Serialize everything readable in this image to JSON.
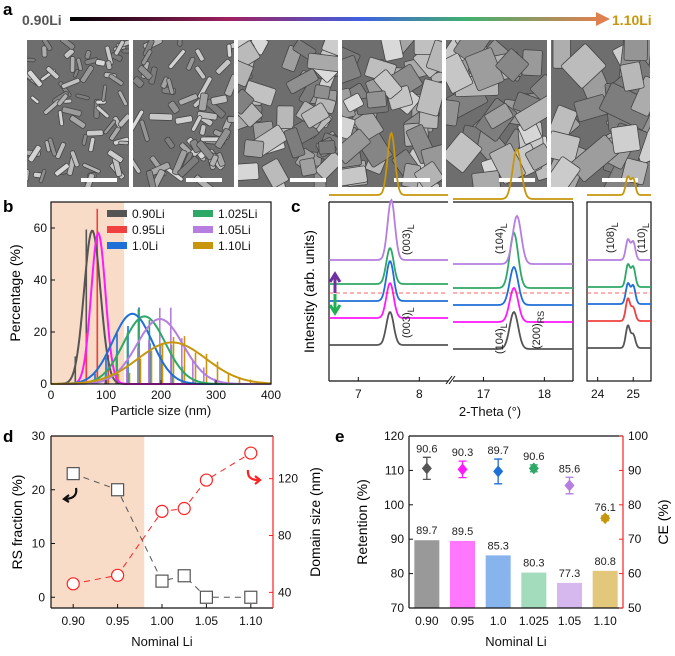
{
  "panel_labels": {
    "a": "a",
    "b": "b",
    "c": "c",
    "d": "d",
    "e": "e"
  },
  "colors": {
    "shade": "#f9dcc8",
    "gray": "#555555",
    "magenta": "#ff19ff",
    "red": "#f04040",
    "blue": "#1f6fd8",
    "green": "#2ea866",
    "purple": "#b57ee0",
    "gold": "#c8960c",
    "axis_red": "#ff2020"
  },
  "panel_a": {
    "left_label": "0.90Li",
    "right_label": "1.10Li",
    "image_count": 6
  },
  "chart_data": [
    {
      "id": "b",
      "type": "bar",
      "xlabel": "Particle size (nm)",
      "ylabel": "Percentage (%)",
      "xlim": [
        0,
        400
      ],
      "ylim": [
        0,
        70
      ],
      "xticks": [
        0,
        100,
        200,
        300,
        400
      ],
      "yticks": [
        0,
        20,
        40,
        60
      ],
      "shaded_region_x": [
        0,
        133
      ],
      "legend_placement": "top-right",
      "series": [
        {
          "name": "0.90Li",
          "color": "#555555",
          "fit_mean": 75,
          "fit_peak": 59,
          "fit_sigma": 15
        },
        {
          "name": "0.95Li",
          "color": "#f04040",
          "line_color": "#ff19ff",
          "fit_mean": 86,
          "fit_peak": 58,
          "fit_sigma": 13
        },
        {
          "name": "1.0Li",
          "color": "#1f6fd8",
          "fit_mean": 148,
          "fit_peak": 27,
          "fit_sigma": 36
        },
        {
          "name": "1.025Li",
          "color": "#2ea866",
          "fit_mean": 170,
          "fit_peak": 26,
          "fit_sigma": 38
        },
        {
          "name": "1.05Li",
          "color": "#b57ee0",
          "fit_mean": 198,
          "fit_peak": 25,
          "fit_sigma": 42
        },
        {
          "name": "1.10Li",
          "color": "#c8960c",
          "fit_mean": 220,
          "fit_peak": 16,
          "fit_sigma": 62
        }
      ]
    },
    {
      "id": "c",
      "type": "line",
      "xlabel": "2-Theta (°)",
      "ylabel": "Intensity (arb. units)",
      "ranges": [
        [
          6.52,
          8.47
        ],
        [
          16.5,
          18.47
        ],
        [
          23.7,
          25.5
        ]
      ],
      "xticks": [
        [
          7,
          8
        ],
        [
          17,
          18
        ],
        [
          24,
          25
        ]
      ],
      "series": [
        {
          "name": "0.90Li",
          "color": "#555555",
          "color_c3": "#555555"
        },
        {
          "name": "0.95Li",
          "color": "#ff19ff",
          "color_c3": "#f04040"
        },
        {
          "name": "1.0Li",
          "color": "#1f6fd8",
          "color_c3": "#1f6fd8"
        },
        {
          "name": "1.025Li",
          "color": "#2ea866",
          "color_c3": "#2ea866"
        },
        {
          "name": "1.05Li",
          "color": "#b57ee0",
          "color_c3": "#b57ee0"
        },
        {
          "name": "1.10Li",
          "color": "#c8960c",
          "color_c3": "#c8960c"
        }
      ],
      "peaks": {
        "003": 7.52,
        "104": 17.5,
        "108": 24.85,
        "110": 25.0
      },
      "annotations": [
        {
          "text": "(003)",
          "sub": "L"
        },
        {
          "text": "(104)",
          "sub": "L"
        },
        {
          "text": "(108)",
          "sub": "L"
        },
        {
          "text": "(110)",
          "sub": "L"
        },
        {
          "text": "(003)",
          "sub": "L"
        },
        {
          "text": "(104)",
          "sub": "L"
        },
        {
          "text": "(200)",
          "sub": "RS"
        }
      ]
    },
    {
      "id": "d",
      "type": "scatter",
      "xlabel": "Nominal Li",
      "ylabel": "RS fraction (%)",
      "y2label": "Domain size (nm)",
      "xlim": [
        0.875,
        1.125
      ],
      "ylim": [
        -2,
        30
      ],
      "y2lim": [
        29,
        150
      ],
      "xticks": [
        "0.90",
        "0.95",
        "1.00",
        "1.05",
        "1.10"
      ],
      "yticks": [
        0,
        10,
        20,
        30
      ],
      "y2ticks": [
        40,
        80,
        120
      ],
      "shaded_region_x": [
        0.875,
        0.98
      ],
      "x": [
        0.9,
        0.95,
        1.0,
        1.025,
        1.05,
        1.1
      ],
      "series": [
        {
          "name": "RS fraction",
          "axis": "left",
          "color": "#555555",
          "marker": "square",
          "values": [
            23,
            20,
            3,
            4,
            0,
            0
          ]
        },
        {
          "name": "Domain size",
          "axis": "right",
          "color": "#ff2020",
          "marker": "circle",
          "values": [
            46,
            52,
            97,
            99,
            119,
            138
          ]
        }
      ]
    },
    {
      "id": "e",
      "type": "bar",
      "xlabel": "Nominal Li",
      "ylabel": "Retention (%)",
      "y2label": "CE (%)",
      "categories": [
        "0.90",
        "0.95",
        "1.0",
        "1.025",
        "1.05",
        "1.10"
      ],
      "ylim": [
        70,
        120
      ],
      "y2lim": [
        50,
        100
      ],
      "yticks": [
        70,
        80,
        90,
        100,
        110,
        120
      ],
      "y2ticks": [
        50,
        60,
        70,
        80,
        90,
        100
      ],
      "bar_colors": [
        "#999999",
        "#ff77ff",
        "#88b4ee",
        "#a3dcbc",
        "#d6b8ef",
        "#e3c77a"
      ],
      "marker_colors": [
        "#555555",
        "#ff19ff",
        "#1f6fd8",
        "#2ea866",
        "#b57ee0",
        "#c8960c"
      ],
      "retention": [
        89.7,
        89.5,
        85.3,
        80.3,
        77.3,
        80.8
      ],
      "retention_labels": [
        "89.7",
        "89.5",
        "85.3",
        "80.3",
        "77.3",
        "80.8"
      ],
      "ce": [
        90.6,
        90.3,
        89.7,
        90.6,
        85.6,
        76.1
      ],
      "ce_labels": [
        "90.6",
        "90.3",
        "89.7",
        "90.6",
        "85.6",
        "76.1"
      ],
      "ce_err": [
        3.2,
        2.4,
        3.6,
        1.0,
        2.4,
        0.7
      ]
    }
  ]
}
